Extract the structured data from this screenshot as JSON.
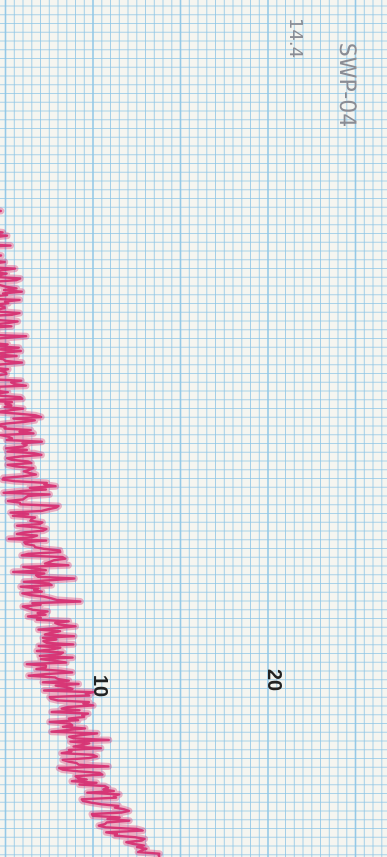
{
  "chart_data": {
    "type": "line",
    "title": "",
    "xlabel": "",
    "ylabel": "",
    "orientation": "rotated-90",
    "tick_labels": [
      "10",
      "20"
    ],
    "annotations": [
      "SWP-04",
      "14.4"
    ],
    "grid": true,
    "line_color": "#d62a6e",
    "grid_color": "#8fc6e6",
    "series": [
      {
        "center": [
          2.2,
          2.2,
          2.3,
          2.6,
          2.7,
          2.9,
          3.5,
          3.8,
          4.2,
          4.5,
          4.6,
          4.9,
          5.1,
          5.5,
          5.7,
          6.1,
          6.7,
          7.0,
          7.1,
          7.6,
          7.7,
          7.9,
          8.5,
          9.2,
          9.6,
          10.4,
          11.2,
          13.2
        ],
        "amplitude": [
          1.2,
          1.1,
          1.3,
          1.4,
          1.4,
          1.4,
          1.3,
          1.3,
          1.2,
          1.2,
          1.2,
          1.2,
          1.3,
          1.3,
          1.4,
          1.4,
          1.5,
          1.5,
          1.5,
          1.5,
          1.5,
          1.5,
          1.4,
          1.4,
          1.4,
          1.3,
          1.2,
          0.9
        ]
      }
    ]
  }
}
